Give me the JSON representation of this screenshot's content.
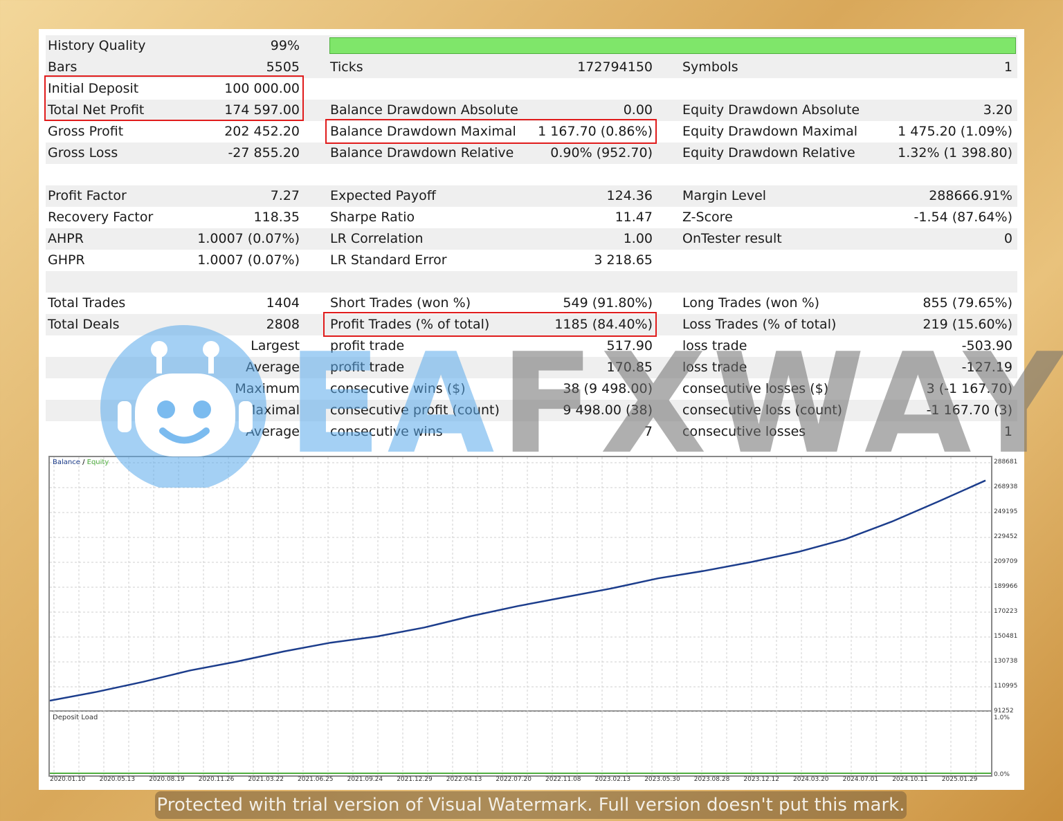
{
  "stats": {
    "rows": [
      {
        "shade": true,
        "c1": [
          "History Quality",
          "99%"
        ],
        "c2": [
          "",
          ""
        ],
        "c3": [
          "",
          ""
        ],
        "bar": true
      },
      {
        "shade": true,
        "c1": [
          "Bars",
          "5505"
        ],
        "c2": [
          "Ticks",
          "172794150"
        ],
        "c3": [
          "Symbols",
          "1"
        ]
      },
      {
        "shade": false,
        "c1": [
          "Initial Deposit",
          "100 000.00"
        ],
        "c2": [
          "",
          ""
        ],
        "c3": [
          "",
          ""
        ]
      },
      {
        "shade": true,
        "c1": [
          "Total Net Profit",
          "174 597.00"
        ],
        "c2": [
          "Balance Drawdown Absolute",
          "0.00"
        ],
        "c3": [
          "Equity Drawdown Absolute",
          "3.20"
        ]
      },
      {
        "shade": false,
        "c1": [
          "Gross Profit",
          "202 452.20"
        ],
        "c2": [
          "Balance Drawdown Maximal",
          "1 167.70 (0.86%)"
        ],
        "c3": [
          "Equity Drawdown Maximal",
          "1 475.20 (1.09%)"
        ]
      },
      {
        "shade": true,
        "c1": [
          "Gross Loss",
          "-27 855.20"
        ],
        "c2": [
          "Balance Drawdown Relative",
          "0.90% (952.70)"
        ],
        "c3": [
          "Equity Drawdown Relative",
          "1.32% (1 398.80)"
        ]
      },
      {
        "shade": false,
        "c1": [
          "",
          ""
        ],
        "c2": [
          "",
          ""
        ],
        "c3": [
          "",
          ""
        ]
      },
      {
        "shade": true,
        "c1": [
          "Profit Factor",
          "7.27"
        ],
        "c2": [
          "Expected Payoff",
          "124.36"
        ],
        "c3": [
          "Margin Level",
          "288666.91%"
        ]
      },
      {
        "shade": false,
        "c1": [
          "Recovery Factor",
          "118.35"
        ],
        "c2": [
          "Sharpe Ratio",
          "11.47"
        ],
        "c3": [
          "Z-Score",
          "-1.54 (87.64%)"
        ]
      },
      {
        "shade": true,
        "c1": [
          "AHPR",
          "1.0007 (0.07%)"
        ],
        "c2": [
          "LR Correlation",
          "1.00"
        ],
        "c3": [
          "OnTester result",
          "0"
        ]
      },
      {
        "shade": false,
        "c1": [
          "GHPR",
          "1.0007 (0.07%)"
        ],
        "c2": [
          "LR Standard Error",
          "3 218.65"
        ],
        "c3": [
          "",
          ""
        ]
      },
      {
        "shade": true,
        "c1": [
          "",
          ""
        ],
        "c2": [
          "",
          ""
        ],
        "c3": [
          "",
          ""
        ]
      },
      {
        "shade": false,
        "c1": [
          "Total Trades",
          "1404"
        ],
        "c2": [
          "Short Trades (won %)",
          "549 (91.80%)"
        ],
        "c3": [
          "Long Trades (won %)",
          "855 (79.65%)"
        ]
      },
      {
        "shade": true,
        "c1": [
          "Total Deals",
          "2808"
        ],
        "c2": [
          "Profit Trades (% of total)",
          "1185 (84.40%)"
        ],
        "c3": [
          "Loss Trades (% of total)",
          "219 (15.60%)"
        ]
      },
      {
        "shade": false,
        "c1": [
          "",
          "Largest"
        ],
        "c2": [
          "profit trade",
          "517.90"
        ],
        "c3": [
          "loss trade",
          "-503.90"
        ]
      },
      {
        "shade": true,
        "c1": [
          "",
          "Average"
        ],
        "c2": [
          "profit trade",
          "170.85"
        ],
        "c3": [
          "loss trade",
          "-127.19"
        ]
      },
      {
        "shade": false,
        "c1": [
          "",
          "Maximum"
        ],
        "c2": [
          "consecutive wins ($)",
          "38 (9 498.00)"
        ],
        "c3": [
          "consecutive losses ($)",
          "3 (-1 167.70)"
        ]
      },
      {
        "shade": true,
        "c1": [
          "",
          "Maximal"
        ],
        "c2": [
          "consecutive profit (count)",
          "9 498.00 (38)"
        ],
        "c3": [
          "consecutive loss (count)",
          "-1 167.70 (3)"
        ]
      },
      {
        "shade": false,
        "c1": [
          "",
          "Average"
        ],
        "c2": [
          "consecutive wins",
          "7"
        ],
        "c3": [
          "consecutive losses",
          "1"
        ]
      }
    ]
  },
  "chart": {
    "legend_balance": "Balance",
    "legend_sep": " / ",
    "legend_equity": "Equity",
    "y_ticks": [
      "288681",
      "268938",
      "249195",
      "229452",
      "209709",
      "189966",
      "170223",
      "150481",
      "130738",
      "110995",
      "91252"
    ],
    "y_range": [
      91252,
      288681
    ],
    "balance_points": [
      [
        0,
        100000
      ],
      [
        0.05,
        107000
      ],
      [
        0.1,
        115000
      ],
      [
        0.15,
        124000
      ],
      [
        0.2,
        131000
      ],
      [
        0.25,
        139000
      ],
      [
        0.3,
        146000
      ],
      [
        0.35,
        151000
      ],
      [
        0.4,
        158000
      ],
      [
        0.45,
        167000
      ],
      [
        0.5,
        175000
      ],
      [
        0.55,
        182000
      ],
      [
        0.6,
        189000
      ],
      [
        0.65,
        197000
      ],
      [
        0.7,
        203000
      ],
      [
        0.75,
        210000
      ],
      [
        0.8,
        218000
      ],
      [
        0.85,
        228000
      ],
      [
        0.9,
        242000
      ],
      [
        0.95,
        258000
      ],
      [
        1.0,
        274600
      ]
    ],
    "colors": {
      "balance": "#1c3d8c",
      "equity": "#4fae3e",
      "grid": "#cfcfcf"
    }
  },
  "deposit_load": {
    "title": "Deposit Load",
    "y_ticks": [
      "1.0%",
      "0.0%"
    ]
  },
  "x_ticks": [
    "2020.01.10",
    "2020.05.13",
    "2020.08.19",
    "2020.11.26",
    "2021.03.22",
    "2021.06.25",
    "2021.09.24",
    "2021.12.29",
    "2022.04.13",
    "2022.07.20",
    "2022.11.08",
    "2023.02.13",
    "2023.05.30",
    "2023.08.28",
    "2023.12.12",
    "2024.03.20",
    "2024.07.01",
    "2024.10.11",
    "2025.01.29"
  ],
  "watermark": {
    "ea": "EA",
    "rest": "FXWAY"
  },
  "trial_notice": "Protected with trial version of Visual Watermark. Full version doesn't put this mark."
}
